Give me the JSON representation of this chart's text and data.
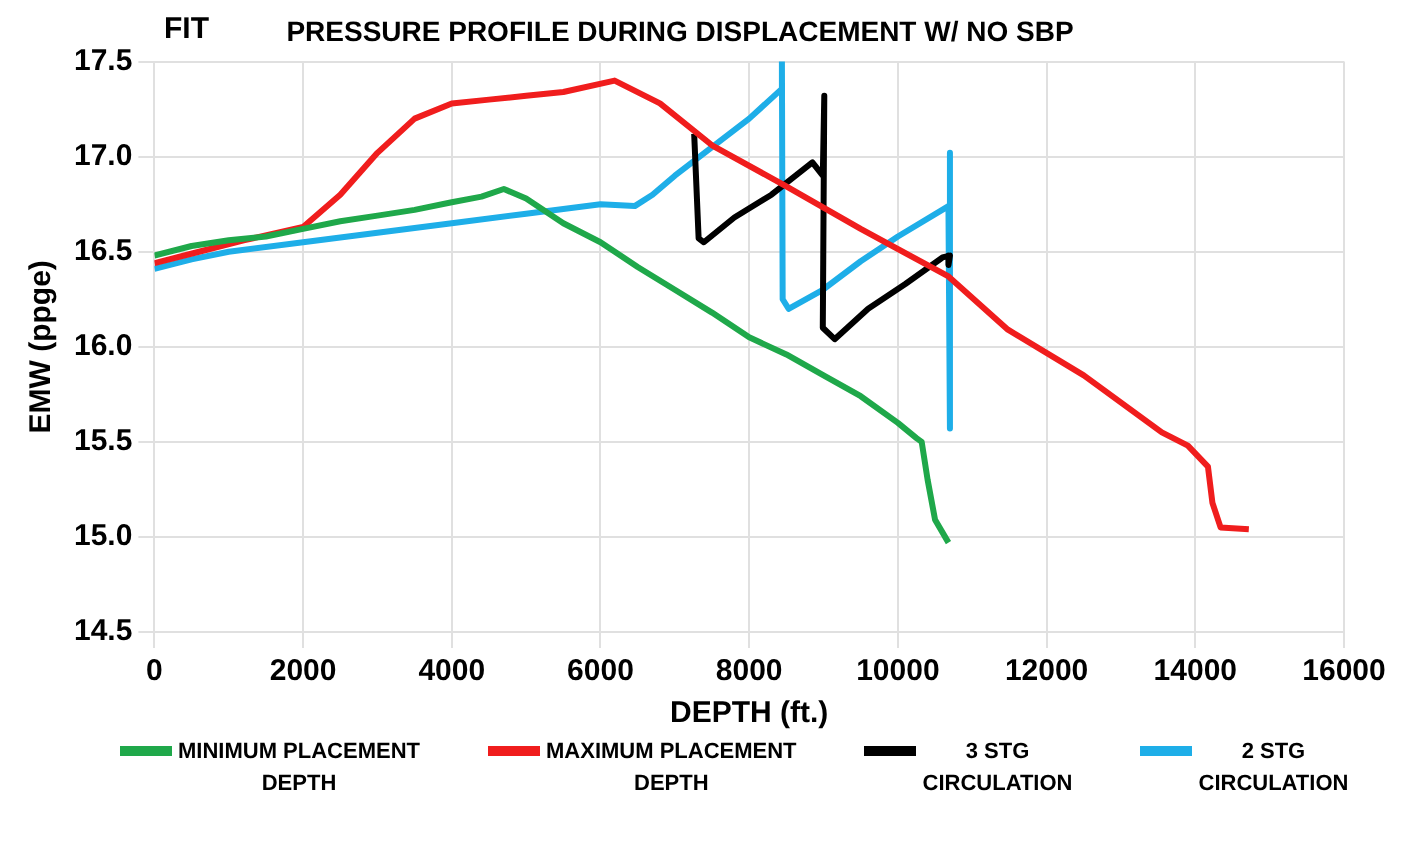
{
  "chart_data": {
    "type": "line",
    "title": "PRESSURE PROFILE DURING DISPLACEMENT W/ NO SBP",
    "xlabel": "DEPTH (ft.)",
    "ylabel": "EMW (ppge)",
    "annotations": [
      "FIT"
    ],
    "xlim": [
      0,
      16000
    ],
    "xticks": [
      0,
      2000,
      4000,
      6000,
      8000,
      10000,
      12000,
      14000,
      16000
    ],
    "ylim": [
      14.5,
      17.5
    ],
    "yticks": [
      14.5,
      {
        "value": 15,
        "label": "15.0"
      },
      15.5,
      {
        "value": 16,
        "label": "16.0"
      },
      16.5,
      {
        "value": 17,
        "label": "17.0"
      },
      17.5
    ],
    "grid": true,
    "legend": "bottom",
    "marker": "none",
    "line_style": "solid",
    "series": [
      {
        "name": "MINIMUM PLACEMENT DEPTH",
        "color": "#1fa84a",
        "x": [
          0,
          500,
          1000,
          1500,
          2000,
          2500,
          3000,
          3500,
          4000,
          4400,
          4700,
          5000,
          5500,
          6000,
          6500,
          7000,
          7500,
          8000,
          8500,
          9000,
          9500,
          10000,
          10250,
          10320,
          10400,
          10500,
          10680
        ],
        "values": [
          16.48,
          16.53,
          16.56,
          16.58,
          16.62,
          16.66,
          16.69,
          16.72,
          16.76,
          16.79,
          16.83,
          16.78,
          16.65,
          16.55,
          16.42,
          16.3,
          16.18,
          16.05,
          15.96,
          15.85,
          15.74,
          15.6,
          15.52,
          15.5,
          15.3,
          15.09,
          14.97
        ]
      },
      {
        "name": "MAXIMUM PLACEMENT DEPTH",
        "color": "#f01d1d",
        "x": [
          0,
          600,
          1200,
          2000,
          2500,
          3000,
          3500,
          4000,
          4500,
          5000,
          5500,
          6190,
          6800,
          7500,
          8470,
          9500,
          10680,
          11480,
          12500,
          13550,
          13900,
          14170,
          14230,
          14340,
          14720
        ],
        "values": [
          16.44,
          16.5,
          16.56,
          16.63,
          16.8,
          17.02,
          17.2,
          17.28,
          17.3,
          17.32,
          17.34,
          17.4,
          17.28,
          17.06,
          16.85,
          16.62,
          16.37,
          16.09,
          15.85,
          15.55,
          15.48,
          15.37,
          15.18,
          15.05,
          15.04
        ]
      },
      {
        "name": "3 STG CIRCULATION",
        "color": "#000000",
        "x": [
          7260,
          7320,
          7390,
          7800,
          8300,
          8850,
          8990,
          9010,
          8990,
          9150,
          9600,
          10100,
          10600,
          10700,
          10680
        ],
        "values": [
          17.12,
          16.57,
          16.55,
          16.68,
          16.8,
          16.97,
          16.9,
          17.32,
          16.1,
          16.04,
          16.2,
          16.33,
          16.47,
          16.48,
          16.43
        ]
      },
      {
        "name": "2 STG CIRCULATION",
        "color": "#1eaee8",
        "x": [
          0,
          500,
          1000,
          2000,
          3000,
          4000,
          5000,
          6000,
          6460,
          6700,
          7000,
          7500,
          8000,
          8420,
          8440,
          8450,
          8530,
          8990,
          9500,
          10000,
          10680,
          10700,
          10700
        ],
        "values": [
          16.41,
          16.46,
          16.5,
          16.55,
          16.6,
          16.65,
          16.7,
          16.75,
          16.74,
          16.8,
          16.9,
          17.05,
          17.2,
          17.35,
          17.5,
          16.25,
          16.2,
          16.3,
          16.45,
          16.58,
          16.74,
          17.02,
          15.57
        ]
      }
    ]
  }
}
